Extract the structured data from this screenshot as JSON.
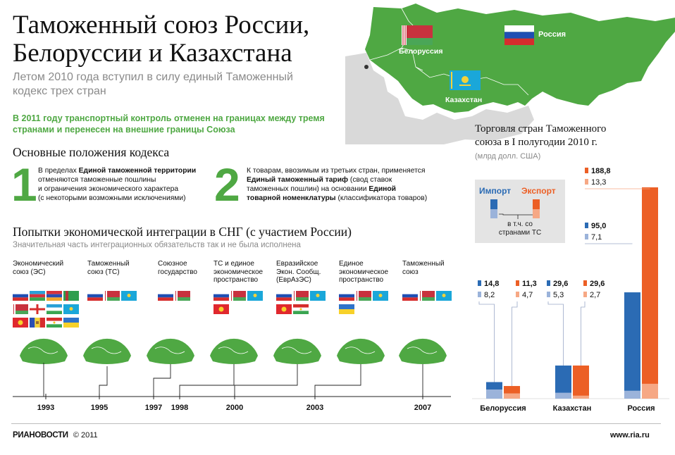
{
  "header": {
    "title_line1": "Таможенный союз России,",
    "title_line2": "Белоруссии и Казахстана",
    "subtitle_line1": "Летом 2010 года вступил в силу единый Таможенный",
    "subtitle_line2": "кодекс трех стран",
    "note_line1": "В 2011 году транспортный контроль отменен на границах между тремя",
    "note_line2": "странами и перенесен на внешние границы Союза"
  },
  "map": {
    "labels": {
      "belarus": "Белоруссия",
      "russia": "Россия",
      "kazakhstan": "Казахстан"
    },
    "colors": {
      "land": "#4fa843",
      "neighbors": "#d9d9d9"
    }
  },
  "provisions": {
    "heading": "Основные положения кодекса",
    "items": [
      {
        "number": "1",
        "lines": [
          [
            "В пределах ",
            "Единой таможенной территории"
          ],
          [
            "отменяются таможенные пошлины"
          ],
          [
            "и ограничения экономического характера"
          ],
          [
            "(с некоторыми возможными исключениями)"
          ]
        ]
      },
      {
        "number": "2",
        "lines": [
          [
            "К товарам, ввозимым из третьих стран, применяется"
          ],
          [
            "Единый таможенный тариф",
            " (свод ставок"
          ],
          [
            "таможенных пошлин) на основании ",
            "Единой"
          ],
          [
            "товарной номенклатуры",
            " (классификатора товаров)"
          ]
        ]
      }
    ]
  },
  "integration": {
    "heading": "Попытки экономической интеграции в СНГ (с участием России)",
    "subheading": "Значительная часть интеграционных обязательств так и не была исполнена",
    "stages": [
      {
        "label": [
          "Экономический",
          "союз (ЭС)"
        ],
        "flags": [
          "ru",
          "az",
          "am",
          "tm",
          "by",
          "ge",
          "uz",
          "kz",
          "kg",
          "md",
          "tj",
          "ua"
        ]
      },
      {
        "label": [
          "Таможенный",
          "союз (ТС)"
        ],
        "flags": [
          "ru",
          "by",
          "kz"
        ]
      },
      {
        "label": [
          "Союзное",
          "государство"
        ],
        "flags": [
          "ru",
          "by"
        ]
      },
      {
        "label": [
          "ТС и единое",
          "экономическое",
          "пространство"
        ],
        "flags": [
          "ru",
          "by",
          "kz",
          "kg"
        ]
      },
      {
        "label": [
          "Евразийское",
          "Экон. Сообщ.",
          "(ЕврАзЭС)"
        ],
        "flags": [
          "ru",
          "by",
          "kz",
          "kg",
          "tj"
        ]
      },
      {
        "label": [
          "Единое",
          "экономическое",
          "пространство"
        ],
        "flags": [
          "ru",
          "by",
          "kz",
          "ua"
        ]
      },
      {
        "label": [
          "Таможенный",
          "союз"
        ],
        "flags": [
          "ru",
          "by",
          "kz"
        ]
      }
    ],
    "years": [
      "1993",
      "1995",
      "1997",
      "1998",
      "2000",
      "2003",
      "2007"
    ]
  },
  "trade": {
    "title_line1": "Торговля стран Таможенного",
    "title_line2": "союза в I полугодии 2010 г.",
    "unit": "(млрд долл. США)",
    "legend": {
      "import": "Импорт",
      "export": "Экспорт",
      "within_line1": "в т.ч. со",
      "within_line2": "странами ТС"
    },
    "colors": {
      "import": "#2b6bb4",
      "import_tc": "#9bb3da",
      "export": "#ec5f25",
      "export_tc": "#f6a885"
    }
  },
  "chart_data": {
    "type": "bar",
    "title": "Торговля стран Таможенного союза в I полугодии 2010 г.",
    "ylabel": "(млрд долл. США)",
    "categories": [
      "Белоруссия",
      "Казахстан",
      "Россия"
    ],
    "series": [
      {
        "name": "Импорт",
        "values": [
          14.8,
          29.6,
          95.0
        ],
        "labels": [
          "14,8",
          "29,6",
          "95,0"
        ]
      },
      {
        "name": "Экспорт",
        "values": [
          11.3,
          29.6,
          188.8
        ],
        "labels": [
          "11,3",
          "29,6",
          "188,8"
        ]
      }
    ],
    "within_tc": [
      {
        "series": "Импорт",
        "values": [
          8.2,
          5.3,
          7.1
        ],
        "labels": [
          "8,2",
          "5,3",
          "7,1"
        ]
      },
      {
        "series": "Экспорт",
        "values": [
          4.7,
          2.7,
          13.3
        ],
        "labels": [
          "4,7",
          "2,7",
          "13,3"
        ]
      }
    ],
    "ylim": [
      0,
      200
    ]
  },
  "footer": {
    "brand": "РИАНОВОСТИ",
    "copyright": "© 2011",
    "site": "www.ria.ru"
  }
}
